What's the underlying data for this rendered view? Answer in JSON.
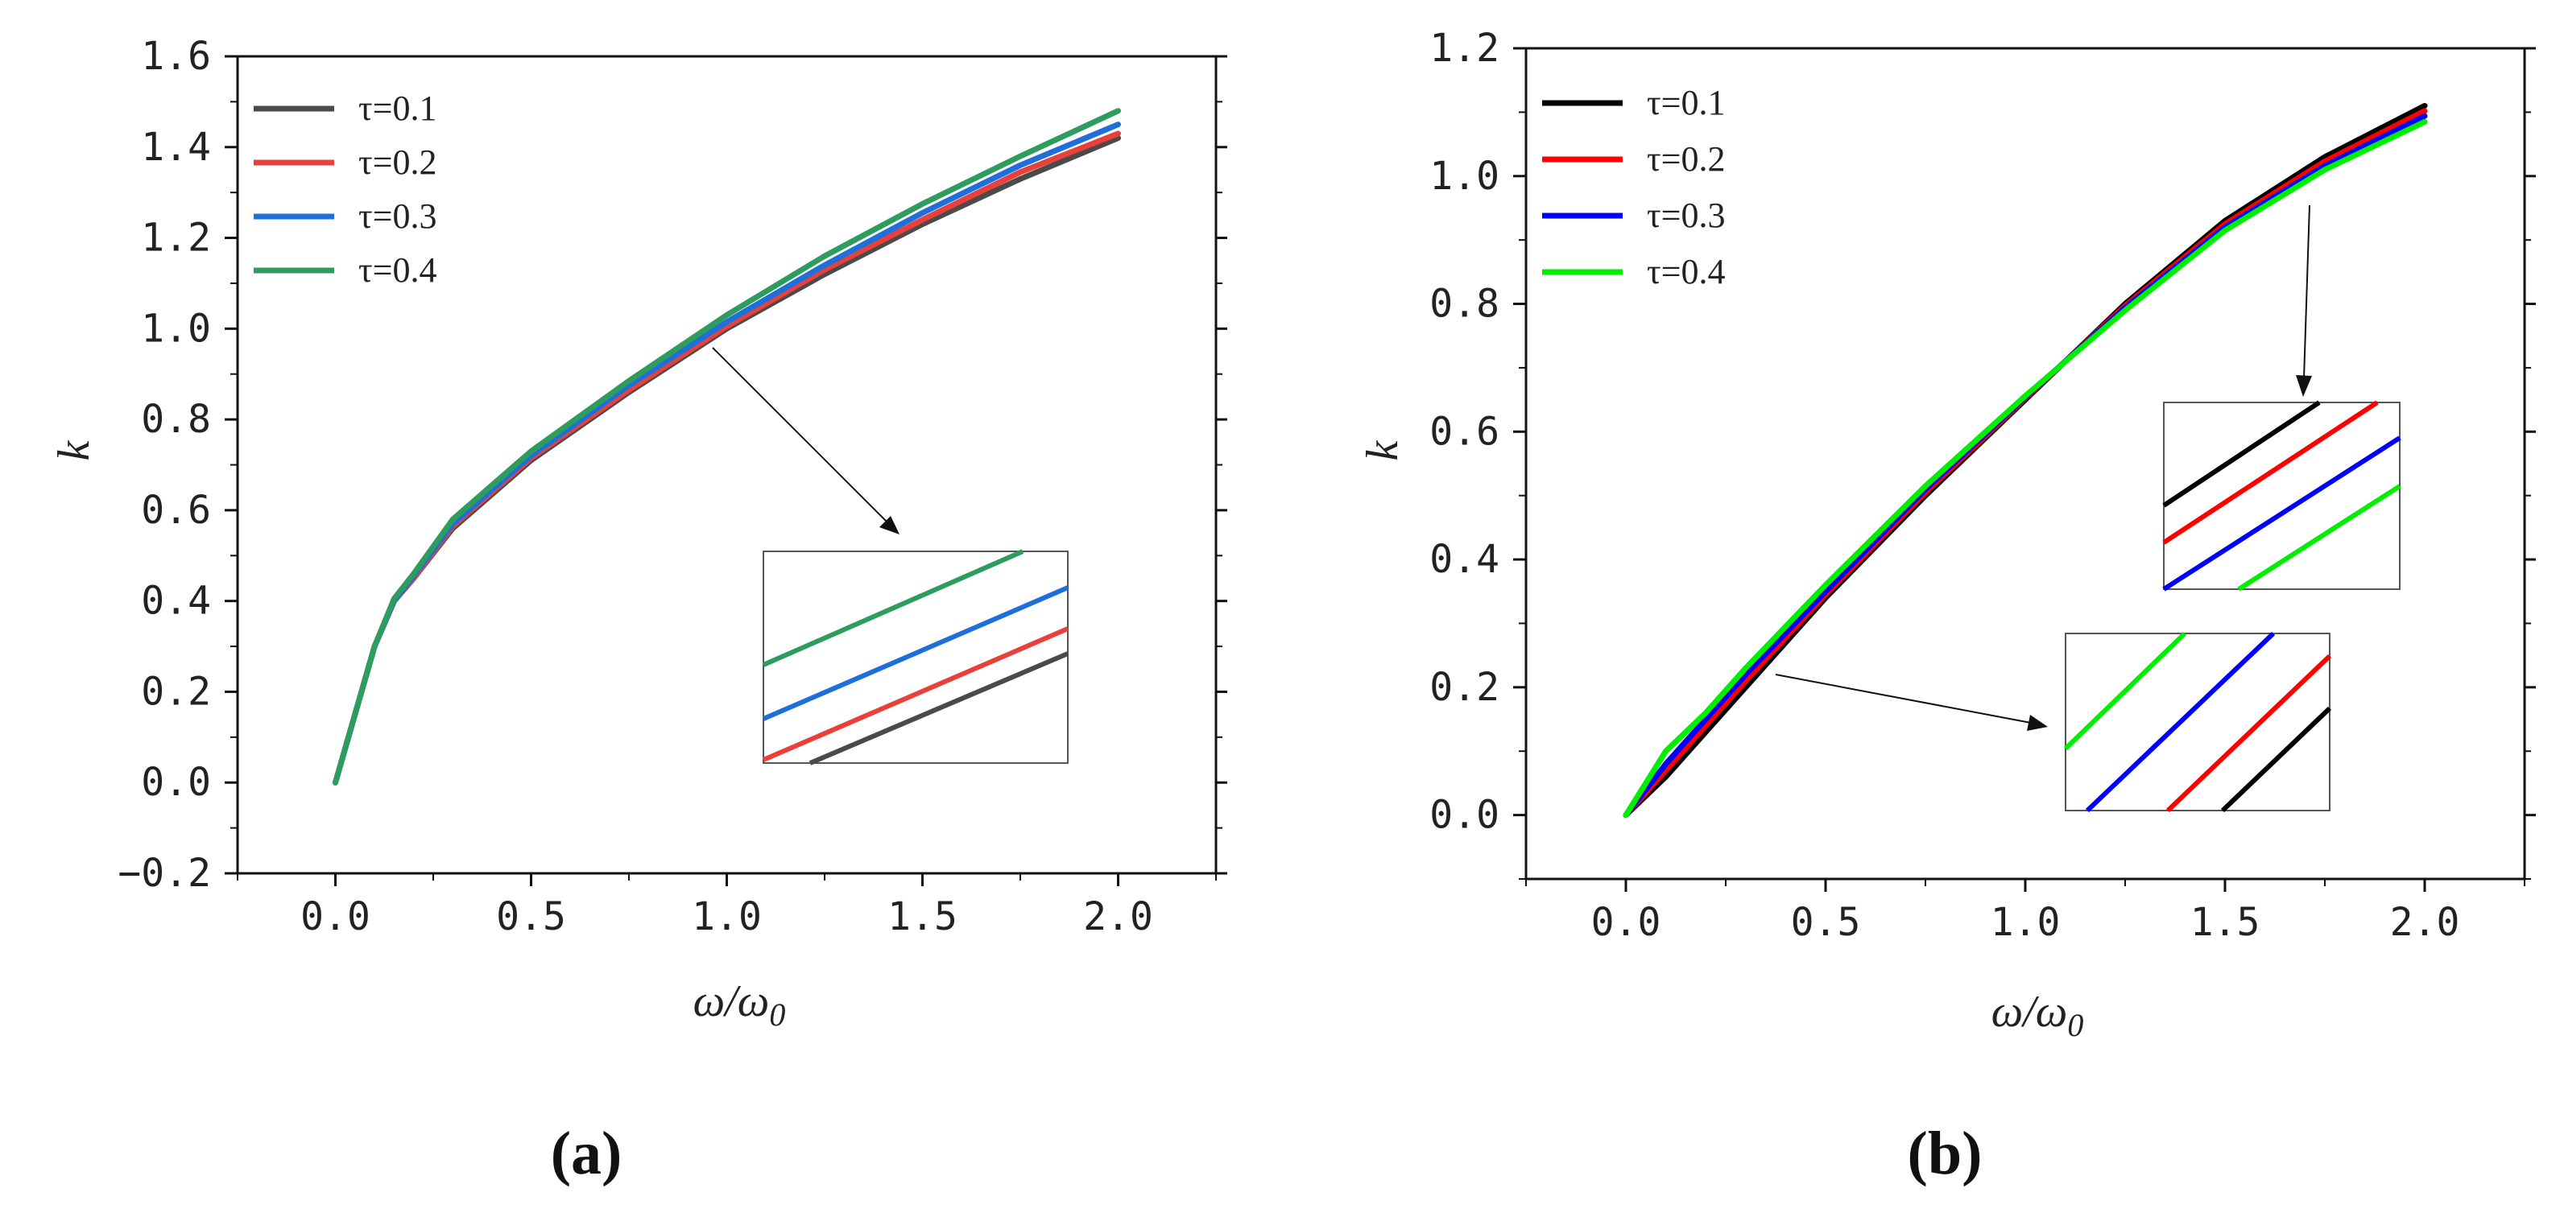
{
  "chart_data": [
    {
      "id": "a",
      "type": "line",
      "panel_label": "(a)",
      "xlabel": "ω/ω0",
      "ylabel": "k",
      "xlim": [
        -0.25,
        2.25
      ],
      "ylim": [
        -0.2,
        1.6
      ],
      "xticks": [
        "0.0",
        "0.5",
        "1.0",
        "1.5",
        "2.0"
      ],
      "yticks": [
        "−0.2",
        "0.0",
        "0.2",
        "0.4",
        "0.6",
        "0.8",
        "1.0",
        "1.2",
        "1.4",
        "1.6"
      ],
      "legend_position": "top-left",
      "series": [
        {
          "name": "τ=0.1",
          "color": "#4a4a4a",
          "x": [
            0,
            0.05,
            0.1,
            0.15,
            0.2,
            0.3,
            0.5,
            0.75,
            1.0,
            1.25,
            1.5,
            1.75,
            2.0
          ],
          "y": [
            0,
            0.15,
            0.3,
            0.4,
            0.45,
            0.56,
            0.71,
            0.86,
            1.0,
            1.12,
            1.23,
            1.33,
            1.42
          ]
        },
        {
          "name": "τ=0.2",
          "color": "#e8403a",
          "x": [
            0,
            0.05,
            0.1,
            0.15,
            0.2,
            0.3,
            0.5,
            0.75,
            1.0,
            1.25,
            1.5,
            1.75,
            2.0
          ],
          "y": [
            0,
            0.15,
            0.3,
            0.4,
            0.45,
            0.565,
            0.715,
            0.865,
            1.005,
            1.13,
            1.24,
            1.345,
            1.43
          ]
        },
        {
          "name": "τ=0.3",
          "color": "#1e6fd9",
          "x": [
            0,
            0.05,
            0.1,
            0.15,
            0.2,
            0.3,
            0.5,
            0.75,
            1.0,
            1.25,
            1.5,
            1.75,
            2.0
          ],
          "y": [
            0,
            0.15,
            0.3,
            0.4,
            0.455,
            0.57,
            0.72,
            0.875,
            1.015,
            1.14,
            1.255,
            1.36,
            1.45
          ]
        },
        {
          "name": "τ=0.4",
          "color": "#2e9c5e",
          "x": [
            0,
            0.05,
            0.1,
            0.15,
            0.2,
            0.3,
            0.5,
            0.75,
            1.0,
            1.25,
            1.5,
            1.75,
            2.0
          ],
          "y": [
            0,
            0.15,
            0.3,
            0.405,
            0.46,
            0.58,
            0.73,
            0.885,
            1.03,
            1.16,
            1.275,
            1.38,
            1.48
          ]
        }
      ],
      "annotation": {
        "type": "zoom-inset",
        "target_x": 0.95,
        "target_y": 0.99
      }
    },
    {
      "id": "b",
      "type": "line",
      "panel_label": "(b)",
      "xlabel": "ω/ω0",
      "ylabel": "k",
      "xlim": [
        -0.25,
        2.25
      ],
      "ylim": [
        -0.1,
        1.2
      ],
      "xticks": [
        "0.0",
        "0.5",
        "1.0",
        "1.5",
        "2.0"
      ],
      "yticks": [
        "0.0",
        "0.2",
        "0.4",
        "0.6",
        "0.8",
        "1.0",
        "1.2"
      ],
      "legend_position": "top-left",
      "series": [
        {
          "name": "τ=0.1",
          "color": "#000000",
          "x": [
            0,
            0.1,
            0.2,
            0.3,
            0.5,
            0.75,
            1.0,
            1.25,
            1.5,
            1.75,
            2.0
          ],
          "y": [
            0,
            0.06,
            0.13,
            0.2,
            0.34,
            0.5,
            0.65,
            0.8,
            0.93,
            1.03,
            1.11
          ]
        },
        {
          "name": "τ=0.2",
          "color": "#ff0000",
          "x": [
            0,
            0.1,
            0.2,
            0.3,
            0.5,
            0.75,
            1.0,
            1.25,
            1.5,
            1.75,
            2.0
          ],
          "y": [
            0,
            0.07,
            0.14,
            0.21,
            0.345,
            0.505,
            0.652,
            0.797,
            0.925,
            1.023,
            1.102
          ]
        },
        {
          "name": "τ=0.3",
          "color": "#0000ff",
          "x": [
            0,
            0.1,
            0.2,
            0.3,
            0.5,
            0.75,
            1.0,
            1.25,
            1.5,
            1.75,
            2.0
          ],
          "y": [
            0,
            0.08,
            0.15,
            0.22,
            0.35,
            0.51,
            0.654,
            0.794,
            0.92,
            1.016,
            1.094
          ]
        },
        {
          "name": "τ=0.4",
          "color": "#00ee00",
          "x": [
            0,
            0.1,
            0.2,
            0.3,
            0.5,
            0.75,
            1.0,
            1.25,
            1.5,
            1.75,
            2.0
          ],
          "y": [
            0,
            0.1,
            0.16,
            0.23,
            0.36,
            0.515,
            0.656,
            0.79,
            0.915,
            1.01,
            1.085
          ]
        }
      ],
      "annotations": [
        {
          "type": "zoom-inset",
          "target_x": 1.7,
          "target_y": 0.99
        },
        {
          "type": "zoom-inset",
          "target_x": 0.37,
          "target_y": 0.22
        }
      ]
    }
  ]
}
